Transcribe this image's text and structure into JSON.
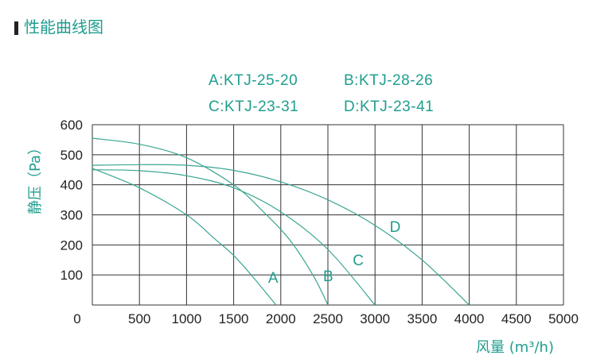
{
  "page": {
    "title": "性能曲线图"
  },
  "colors": {
    "accent": "#1f9e8e",
    "grid": "#333333",
    "text": "#222222",
    "curve": "#3aa592"
  },
  "legend": [
    {
      "key": "A",
      "text": "A:KTJ-25-20"
    },
    {
      "key": "B",
      "text": "B:KTJ-28-26"
    },
    {
      "key": "C",
      "text": "C:KTJ-23-31"
    },
    {
      "key": "D",
      "text": "D:KTJ-23-41"
    }
  ],
  "chart_data": {
    "type": "line",
    "title": "",
    "xlabel": "风量 (m³/h)",
    "ylabel": "静压（Pa）",
    "xlim": [
      0,
      5000
    ],
    "ylim": [
      0,
      600
    ],
    "x_ticks": [
      0,
      500,
      1000,
      1500,
      2000,
      2500,
      3000,
      3500,
      4000,
      4500,
      5000
    ],
    "y_ticks": [
      100,
      200,
      300,
      400,
      500,
      600
    ],
    "grid": true,
    "legend_position": "top-right",
    "series": [
      {
        "name": "A",
        "x": [
          0,
          500,
          1000,
          1300,
          1500,
          1700,
          1950
        ],
        "y": [
          455,
          390,
          300,
          220,
          165,
          95,
          0
        ]
      },
      {
        "name": "B",
        "x": [
          0,
          500,
          1000,
          1500,
          1800,
          2100,
          2350,
          2500
        ],
        "y": [
          555,
          535,
          490,
          400,
          315,
          215,
          95,
          0
        ]
      },
      {
        "name": "C",
        "x": [
          0,
          500,
          1000,
          1500,
          2000,
          2500,
          3000
        ],
        "y": [
          450,
          447,
          430,
          390,
          310,
          185,
          0
        ]
      },
      {
        "name": "D",
        "x": [
          0,
          500,
          1000,
          1500,
          2000,
          2500,
          3000,
          3500,
          4000
        ],
        "y": [
          465,
          467,
          465,
          448,
          410,
          350,
          265,
          150,
          0
        ]
      }
    ]
  }
}
